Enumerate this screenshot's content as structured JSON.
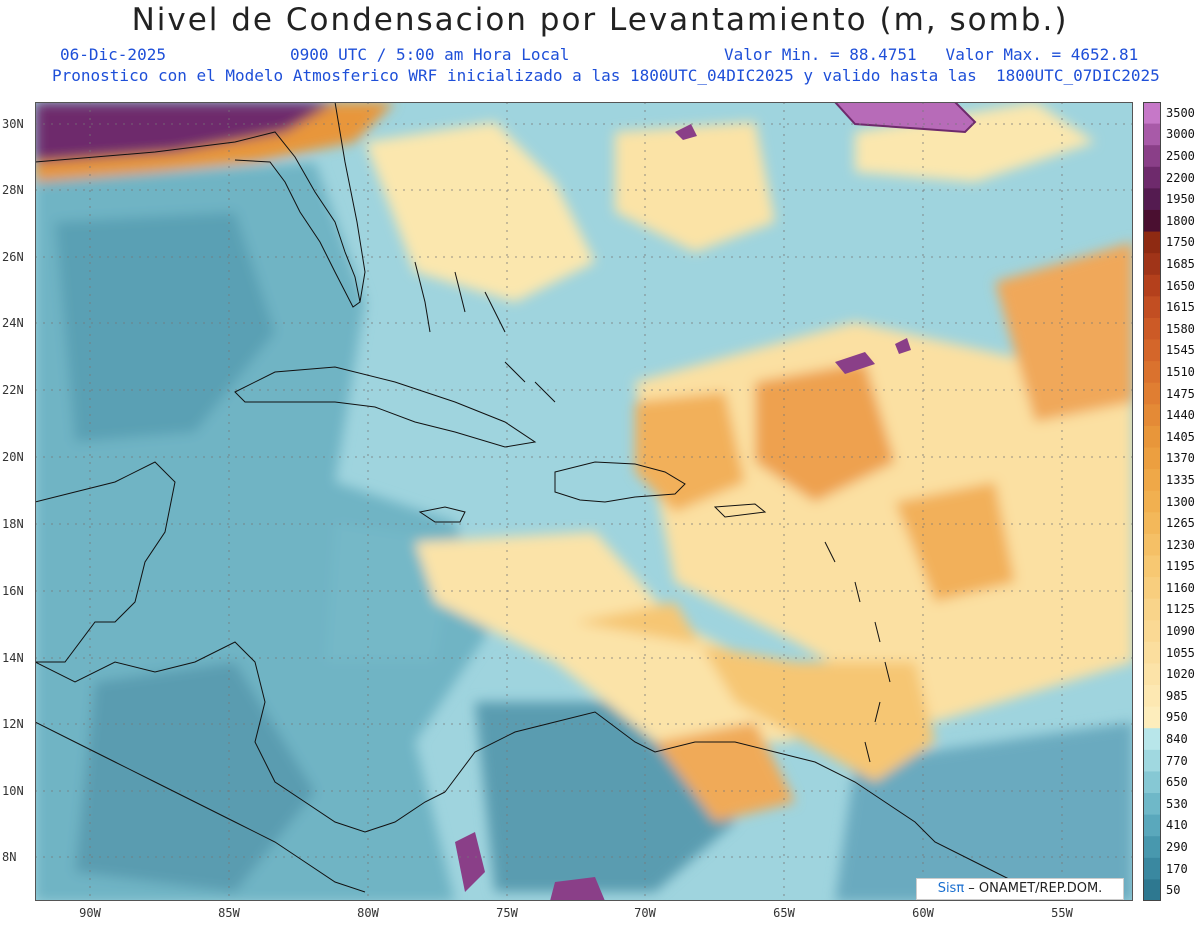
{
  "header": {
    "title": "Nivel de Condensacion por Levantamiento (m, somb.)",
    "date": "06-Dic-2025",
    "time": "0900 UTC / 5:00 am Hora Local",
    "minmax": "Valor Min. = 88.4751   Valor Max. = 4652.81",
    "description": "Pronostico con el Modelo Atmosferico WRF inicializado a las 1800UTC_04DIC2025 y valido hasta las  1800UTC_07DIC2025"
  },
  "axes": {
    "x_ticks": [
      "90W",
      "85W",
      "80W",
      "75W",
      "70W",
      "65W",
      "60W",
      "55W"
    ],
    "y_ticks": [
      "30N",
      "28N",
      "26N",
      "24N",
      "22N",
      "20N",
      "18N",
      "16N",
      "14N",
      "12N",
      "10N",
      "8N"
    ]
  },
  "colorbar": {
    "labels": [
      "3500",
      "3000",
      "2500",
      "2200",
      "1950",
      "1800",
      "1750",
      "1685",
      "1650",
      "1615",
      "1580",
      "1545",
      "1510",
      "1475",
      "1440",
      "1405",
      "1370",
      "1335",
      "1300",
      "1265",
      "1230",
      "1195",
      "1160",
      "1125",
      "1090",
      "1055",
      "1020",
      "985",
      "950",
      "840",
      "770",
      "650",
      "530",
      "410",
      "290",
      "170",
      "50"
    ],
    "colors": [
      "#c678c8",
      "#a85aa8",
      "#8a3f88",
      "#6e2a6c",
      "#541b50",
      "#4a0f30",
      "#8e2a12",
      "#a03418",
      "#b4401c",
      "#c24e22",
      "#cc5a26",
      "#d4662a",
      "#da722e",
      "#e07e32",
      "#e48a36",
      "#e8963a",
      "#ec9f40",
      "#efa848",
      "#f1b050",
      "#f3b85a",
      "#f5c066",
      "#f7c872",
      "#f8ce7e",
      "#f9d48a",
      "#fad994",
      "#fbde9e",
      "#fce3a8",
      "#fde8b2",
      "#fdedbc",
      "#b8e6ea",
      "#a0d8e0",
      "#86c8d4",
      "#6fb8c8",
      "#5aa8bc",
      "#4898ae",
      "#3a88a0",
      "#2e7890"
    ]
  },
  "credit": {
    "sis": "Sisπ",
    "text": " – ONAMET/REP.DOM."
  }
}
